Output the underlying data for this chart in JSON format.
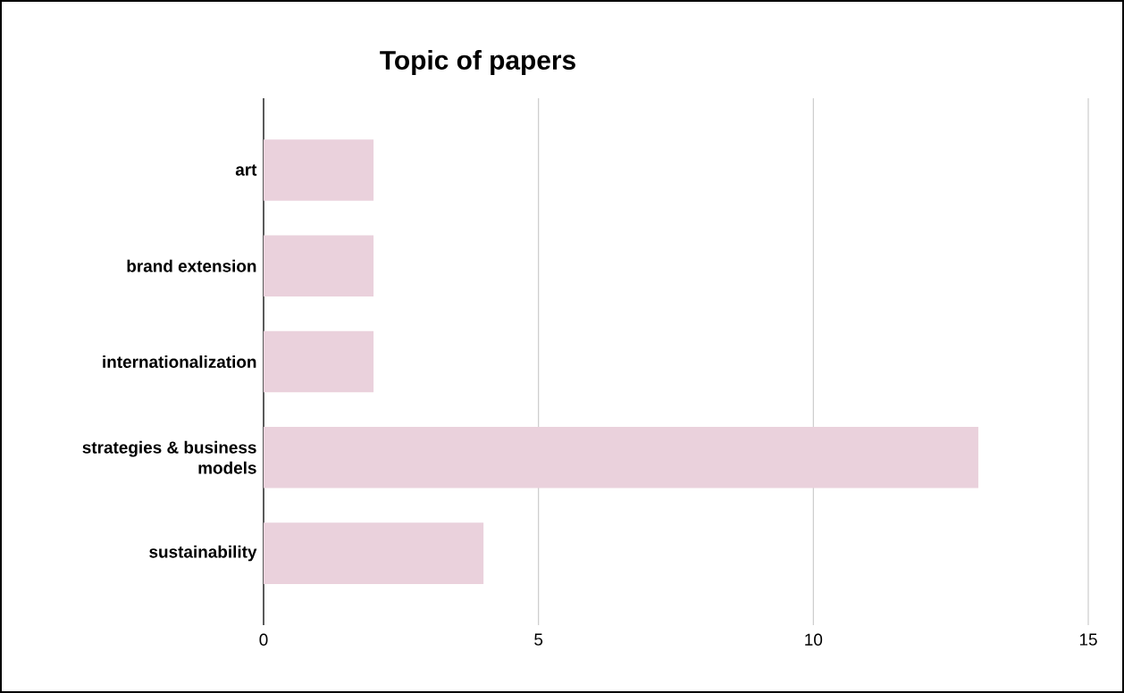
{
  "chart_data": {
    "type": "bar",
    "orientation": "horizontal",
    "title": "Topic of papers",
    "categories": [
      "art",
      "brand extension",
      "internationalization",
      "strategies & business models",
      "sustainability"
    ],
    "values": [
      2,
      2,
      2,
      13,
      4
    ],
    "color": "#ead1dc",
    "xlim": [
      0,
      15
    ],
    "xticks": [
      0,
      5,
      10,
      15
    ],
    "grid": "x"
  }
}
